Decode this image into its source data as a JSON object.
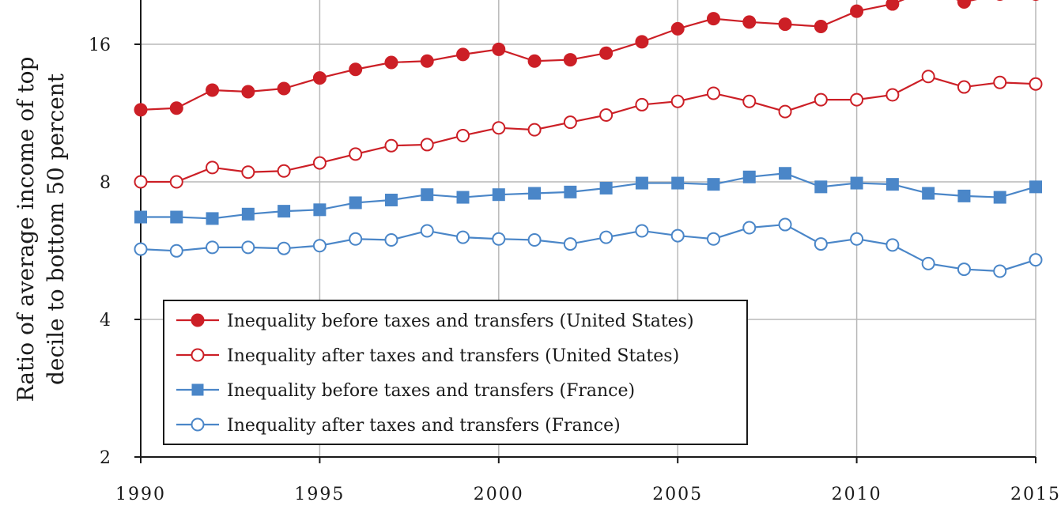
{
  "chart_data": {
    "type": "line",
    "ylabel": [
      "Ratio of average income of top",
      "decile to bottom 50 percent"
    ],
    "y_scale": "log2",
    "ylim": [
      2,
      24
    ],
    "xlim": [
      1990,
      2015
    ],
    "y_ticks": [
      2,
      4,
      8,
      16
    ],
    "y_tick_labels": [
      "2",
      "4",
      "8",
      "16"
    ],
    "x_ticks": [
      1990,
      1995,
      2000,
      2005,
      2010,
      2015
    ],
    "x_tick_labels": [
      "1990",
      "1995",
      "2000",
      "2005",
      "2010",
      "2015"
    ],
    "grid": true,
    "legend_position": "lower-left",
    "x": [
      1990,
      1991,
      1992,
      1993,
      1994,
      1995,
      1996,
      1997,
      1998,
      1999,
      2000,
      2001,
      2002,
      2003,
      2004,
      2005,
      2006,
      2007,
      2008,
      2009,
      2010,
      2011,
      2012,
      2013,
      2014,
      2015
    ],
    "series": [
      {
        "name": "Inequality before taxes and transfers (United States)",
        "color": "#cc1f26",
        "marker": "circle",
        "fill": true,
        "values": [
          11.5,
          11.6,
          12.7,
          12.6,
          12.8,
          13.5,
          14.1,
          14.6,
          14.7,
          15.2,
          15.6,
          14.7,
          14.8,
          15.3,
          16.2,
          17.3,
          18.2,
          17.9,
          17.7,
          17.5,
          18.9,
          19.6,
          21.1,
          19.8,
          20.6,
          20.6
        ]
      },
      {
        "name": "Inequality after taxes and transfers (United States)",
        "color": "#cc1f26",
        "marker": "circle",
        "fill": false,
        "values": [
          8.0,
          8.0,
          8.6,
          8.4,
          8.45,
          8.8,
          9.2,
          9.6,
          9.65,
          10.1,
          10.5,
          10.4,
          10.8,
          11.2,
          11.8,
          12.0,
          12.5,
          12.0,
          11.4,
          12.1,
          12.1,
          12.4,
          13.6,
          12.9,
          13.2,
          13.1
        ]
      },
      {
        "name": "Inequality before taxes and transfers (France)",
        "color": "#4a86c8",
        "marker": "square",
        "fill": true,
        "values": [
          6.7,
          6.7,
          6.65,
          6.8,
          6.9,
          6.95,
          7.2,
          7.3,
          7.5,
          7.4,
          7.5,
          7.55,
          7.6,
          7.75,
          7.95,
          7.95,
          7.9,
          8.2,
          8.35,
          7.8,
          7.95,
          7.9,
          7.55,
          7.45,
          7.4,
          7.8
        ]
      },
      {
        "name": "Inequality after taxes and transfers (France)",
        "color": "#4a86c8",
        "marker": "circle",
        "fill": false,
        "values": [
          5.7,
          5.65,
          5.75,
          5.75,
          5.72,
          5.8,
          6.0,
          5.97,
          6.25,
          6.05,
          6.0,
          5.97,
          5.85,
          6.05,
          6.25,
          6.1,
          6.0,
          6.35,
          6.45,
          5.85,
          6.0,
          5.82,
          5.3,
          5.15,
          5.1,
          5.4
        ]
      }
    ]
  }
}
